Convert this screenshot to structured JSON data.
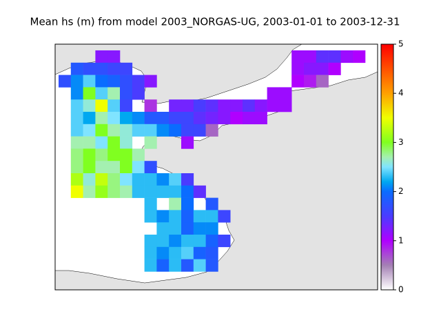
{
  "chart_data": {
    "type": "gridmap",
    "title": "Mean hs (m) from model 2003_NORGAS-UG, 2003-01-01 to 2003-12-31",
    "grid": [
      [
        null,
        null,
        null,
        1.2,
        1.2,
        null,
        null,
        null,
        null,
        null,
        null,
        null,
        null,
        null,
        null,
        null,
        null,
        null,
        null,
        1.1,
        1.1,
        1.4,
        1.4,
        1.1,
        1.0
      ],
      [
        null,
        1.8,
        1.7,
        1.7,
        1.6,
        1.6,
        null,
        null,
        null,
        null,
        null,
        null,
        null,
        null,
        null,
        null,
        null,
        null,
        null,
        1.1,
        1.2,
        1.2,
        1.0,
        null,
        null
      ],
      [
        1.7,
        2.1,
        2.4,
        2.0,
        1.9,
        1.7,
        1.5,
        1.2,
        null,
        null,
        null,
        null,
        null,
        null,
        null,
        null,
        null,
        null,
        null,
        1.0,
        0.9,
        0.6,
        null,
        null,
        null
      ],
      [
        null,
        2.1,
        3.0,
        2.4,
        2.7,
        1.7,
        1.5,
        null,
        null,
        null,
        null,
        null,
        null,
        null,
        null,
        null,
        null,
        1.1,
        1.1,
        null,
        null,
        null,
        null,
        null,
        null
      ],
      [
        null,
        2.4,
        2.6,
        3.5,
        2.4,
        1.6,
        null,
        0.8,
        null,
        1.3,
        1.3,
        1.5,
        1.4,
        1.2,
        1.2,
        1.4,
        1.2,
        1.1,
        1.1,
        null,
        null,
        null,
        null,
        null,
        null
      ],
      [
        null,
        2.4,
        2.2,
        2.7,
        2.5,
        2.2,
        2.1,
        1.8,
        1.8,
        1.6,
        1.6,
        1.4,
        1.3,
        1.2,
        1.0,
        1.1,
        1.1,
        null,
        null,
        null,
        null,
        null,
        null,
        null,
        null
      ],
      [
        null,
        2.4,
        2.5,
        3.0,
        2.7,
        2.6,
        2.4,
        2.4,
        2.1,
        2.0,
        1.6,
        1.6,
        0.6,
        null,
        null,
        null,
        null,
        null,
        null,
        null,
        null,
        null,
        null,
        null,
        null
      ],
      [
        null,
        2.7,
        2.7,
        2.5,
        3.0,
        2.6,
        null,
        2.7,
        null,
        null,
        1.1,
        null,
        null,
        null,
        null,
        null,
        null,
        null,
        null,
        null,
        null,
        null,
        null,
        null,
        null
      ],
      [
        null,
        2.8,
        3.0,
        2.8,
        3.0,
        3.0,
        2.7,
        null,
        null,
        null,
        null,
        null,
        null,
        null,
        null,
        null,
        null,
        null,
        null,
        null,
        null,
        null,
        null,
        null,
        null
      ],
      [
        null,
        2.8,
        3.0,
        2.7,
        2.7,
        3.0,
        2.5,
        1.7,
        null,
        null,
        null,
        null,
        null,
        null,
        null,
        null,
        null,
        null,
        null,
        null,
        null,
        null,
        null,
        null,
        null
      ],
      [
        null,
        3.2,
        2.6,
        3.3,
        2.8,
        2.5,
        2.3,
        2.3,
        2.1,
        2.4,
        1.5,
        null,
        null,
        null,
        null,
        null,
        null,
        null,
        null,
        null,
        null,
        null,
        null,
        null,
        null
      ],
      [
        null,
        3.5,
        2.7,
        3.1,
        2.8,
        2.7,
        2.3,
        2.3,
        2.3,
        2.3,
        2.0,
        1.4,
        null,
        null,
        null,
        null,
        null,
        null,
        null,
        null,
        null,
        null,
        null,
        null,
        null
      ],
      [
        null,
        null,
        null,
        null,
        null,
        null,
        null,
        2.3,
        null,
        2.7,
        2.0,
        null,
        1.8,
        null,
        null,
        null,
        null,
        null,
        null,
        null,
        null,
        null,
        null,
        null,
        null
      ],
      [
        null,
        null,
        null,
        null,
        null,
        null,
        null,
        2.3,
        2.1,
        2.3,
        1.9,
        2.3,
        2.3,
        1.6,
        null,
        null,
        null,
        null,
        null,
        null,
        null,
        null,
        null,
        null,
        null
      ],
      [
        null,
        null,
        null,
        null,
        null,
        null,
        null,
        null,
        2.3,
        2.3,
        1.9,
        2.1,
        2.1,
        null,
        null,
        null,
        null,
        null,
        null,
        null,
        null,
        null,
        null,
        null,
        null
      ],
      [
        null,
        null,
        null,
        null,
        null,
        null,
        null,
        2.3,
        2.3,
        2.1,
        2.3,
        2.3,
        1.9,
        1.6,
        null,
        null,
        null,
        null,
        null,
        null,
        null,
        null,
        null,
        null,
        null
      ],
      [
        null,
        null,
        null,
        null,
        null,
        null,
        null,
        2.3,
        2.1,
        2.3,
        2.4,
        1.9,
        1.8,
        null,
        null,
        null,
        null,
        null,
        null,
        null,
        null,
        null,
        null,
        null,
        null
      ],
      [
        null,
        null,
        null,
        null,
        null,
        null,
        null,
        2.3,
        1.9,
        2.3,
        1.8,
        2.4,
        1.8,
        null,
        null,
        null,
        null,
        null,
        null,
        null,
        null,
        null,
        null,
        null,
        null
      ]
    ],
    "colormap": [
      {
        "value": 0,
        "color": "#ffffff"
      },
      {
        "value": 0.5,
        "color": "#a480b4"
      },
      {
        "value": 1,
        "color": "#b000ff"
      },
      {
        "value": 1.5,
        "color": "#4a3cff"
      },
      {
        "value": 2,
        "color": "#0a6cff"
      },
      {
        "value": 2.2,
        "color": "#00a8f0"
      },
      {
        "value": 2.5,
        "color": "#80e4ff"
      },
      {
        "value": 2.7,
        "color": "#a4f0b0"
      },
      {
        "value": 3,
        "color": "#80ff20"
      },
      {
        "value": 3.5,
        "color": "#f0ff00"
      },
      {
        "value": 4,
        "color": "#ffa000"
      },
      {
        "value": 5,
        "color": "#ff0000"
      }
    ],
    "ylim": [
      0,
      5
    ],
    "yticks": [
      0,
      1,
      2,
      3,
      4,
      5
    ]
  }
}
